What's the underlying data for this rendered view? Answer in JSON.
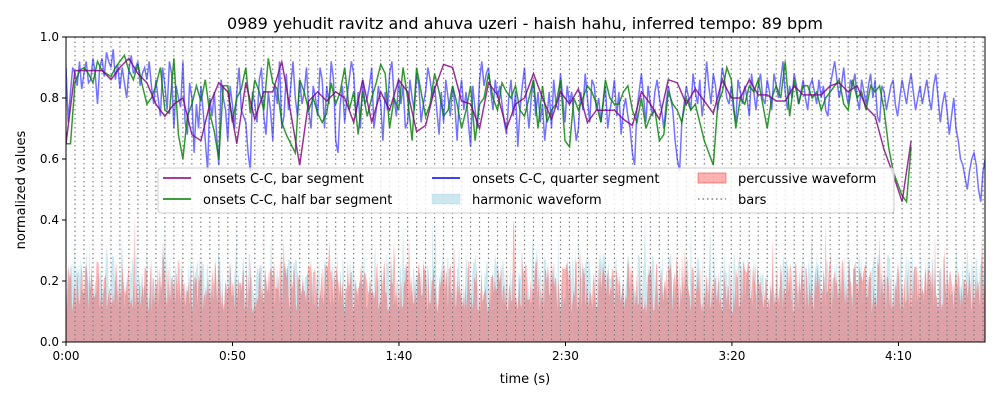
{
  "chart_data": {
    "type": "line",
    "title": "0989 yehudit ravitz and ahuva uzeri - haish hahu, inferred tempo: 89 bpm",
    "xlabel": "time (s)",
    "ylabel": "normalized values",
    "xlim": [
      0,
      276
    ],
    "ylim": [
      0,
      1
    ],
    "x_ticks": [
      {
        "value": 0,
        "label": "0:00"
      },
      {
        "value": 50,
        "label": "0:50"
      },
      {
        "value": 100,
        "label": "1:40"
      },
      {
        "value": 150,
        "label": "2:30"
      },
      {
        "value": 200,
        "label": "3:20"
      },
      {
        "value": 250,
        "label": "4:10"
      }
    ],
    "y_ticks": [
      {
        "value": 0.0,
        "label": "0.0"
      },
      {
        "value": 0.2,
        "label": "0.2"
      },
      {
        "value": 0.4,
        "label": "0.4"
      },
      {
        "value": 0.6,
        "label": "0.6"
      },
      {
        "value": 0.8,
        "label": "0.8"
      },
      {
        "value": 1.0,
        "label": "1.0"
      }
    ],
    "bar_interval": 2.7,
    "duration": 276,
    "legend": {
      "placement": "center",
      "entries": [
        {
          "label": "onsets C-C, bar segment",
          "kind": "line",
          "color": "#800080"
        },
        {
          "label": "onsets C-C, half bar segment",
          "kind": "line",
          "color": "#008000"
        },
        {
          "label": "onsets C-C, quarter segment",
          "kind": "line",
          "color": "#0000ff"
        },
        {
          "label": "harmonic waveform",
          "kind": "patch",
          "color": "#add8e6"
        },
        {
          "label": "percussive waveform",
          "kind": "patch",
          "color": "#ff0000"
        },
        {
          "label": "bars",
          "kind": "dotted",
          "color": "#808080"
        }
      ]
    },
    "series": [
      {
        "name": "onsets C-C, bar segment",
        "color": "#800080",
        "step": 2.7,
        "values": [
          0.65,
          0.89,
          0.89,
          0.89,
          0.89,
          0.86,
          0.9,
          0.93,
          0.88,
          0.85,
          0.78,
          0.74,
          0.78,
          0.8,
          0.68,
          0.66,
          0.78,
          0.85,
          0.82,
          0.65,
          0.85,
          0.73,
          0.82,
          0.82,
          0.92,
          0.75,
          0.58,
          0.79,
          0.82,
          0.79,
          0.82,
          0.8,
          0.72,
          0.86,
          0.72,
          0.82,
          0.76,
          0.86,
          0.82,
          0.69,
          0.71,
          0.83,
          0.91,
          0.9,
          0.79,
          0.78,
          0.7,
          0.85,
          0.81,
          0.7,
          0.78,
          0.8,
          0.88,
          0.8,
          0.73,
          0.82,
          0.78,
          0.83,
          0.72,
          0.76,
          0.76,
          0.76,
          0.73,
          0.71,
          0.82,
          0.78,
          0.73,
          0.86,
          0.85,
          0.78,
          0.83,
          0.79,
          0.75,
          0.86,
          0.8,
          0.8,
          0.86,
          0.81,
          0.81,
          0.79,
          0.79,
          0.84,
          0.81,
          0.81,
          0.81,
          0.84,
          0.85,
          0.82,
          0.84,
          0.77,
          0.74,
          0.63,
          0.55,
          0.46,
          0.66
        ]
      },
      {
        "name": "onsets C-C, half bar segment",
        "color": "#008000",
        "step": 1.35,
        "values": [
          0.65,
          0.65,
          0.85,
          0.89,
          0.9,
          0.88,
          0.85,
          0.92,
          0.89,
          0.88,
          0.87,
          0.9,
          0.92,
          0.94,
          0.89,
          0.86,
          0.91,
          0.84,
          0.78,
          0.8,
          0.84,
          0.9,
          0.76,
          0.75,
          0.93,
          0.68,
          0.6,
          0.74,
          0.78,
          0.84,
          0.79,
          0.86,
          0.75,
          0.69,
          0.6,
          0.84,
          0.84,
          0.72,
          0.8,
          0.83,
          0.9,
          0.75,
          0.86,
          0.82,
          0.76,
          0.93,
          0.85,
          0.83,
          0.72,
          0.68,
          0.65,
          0.62,
          0.86,
          0.82,
          0.76,
          0.8,
          0.75,
          0.72,
          0.75,
          0.85,
          0.78,
          0.82,
          0.9,
          0.76,
          0.82,
          0.68,
          0.82,
          0.74,
          0.8,
          0.85,
          0.91,
          0.88,
          0.7,
          0.8,
          0.76,
          0.9,
          0.8,
          0.66,
          0.9,
          0.82,
          0.74,
          0.78,
          0.88,
          0.82,
          0.74,
          0.76,
          0.84,
          0.78,
          0.7,
          0.76,
          0.84,
          0.66,
          0.78,
          0.8,
          0.88,
          0.8,
          0.76,
          0.85,
          0.82,
          0.8,
          0.84,
          0.76,
          0.74,
          0.8,
          0.86,
          0.7,
          0.84,
          0.72,
          0.76,
          0.78,
          0.86,
          0.66,
          0.64,
          0.8,
          0.76,
          0.8,
          0.84,
          0.82,
          0.78,
          0.72,
          0.86,
          0.8,
          0.78,
          0.78,
          0.82,
          0.84,
          0.76,
          0.72,
          0.8,
          0.7,
          0.74,
          0.76,
          0.66,
          0.68,
          0.82,
          0.78,
          0.76,
          0.72,
          0.8,
          0.76,
          0.78,
          0.72,
          0.66,
          0.62,
          0.58,
          0.78,
          0.82,
          0.9,
          0.86,
          0.7,
          0.8,
          0.78,
          0.84,
          0.82,
          0.86,
          0.78,
          0.7,
          0.8,
          0.84,
          0.8,
          0.92,
          0.74,
          0.86,
          0.78,
          0.84,
          0.84,
          0.8,
          0.82,
          0.76,
          0.8,
          0.82,
          0.84,
          0.86,
          0.78,
          0.76,
          0.86,
          0.8,
          0.82,
          0.76,
          0.84,
          0.82,
          0.84,
          0.76,
          0.64,
          0.56,
          0.52,
          0.48,
          0.46,
          0.64
        ]
      },
      {
        "name": "onsets C-C, quarter segment",
        "color": "#0000ff",
        "step": 0.675,
        "values": [
          0.9,
          0.72,
          0.82,
          0.9,
          0.88,
          0.84,
          0.92,
          0.83,
          0.88,
          0.92,
          0.85,
          0.86,
          0.93,
          0.88,
          0.78,
          0.9,
          0.93,
          0.87,
          0.95,
          0.92,
          0.9,
          0.96,
          0.86,
          0.91,
          0.83,
          0.9,
          0.85,
          0.8,
          0.89,
          0.94,
          0.88,
          0.9,
          0.92,
          0.84,
          0.88,
          0.9,
          0.86,
          0.92,
          0.84,
          0.78,
          0.86,
          0.8,
          0.74,
          0.9,
          0.84,
          0.76,
          0.92,
          0.88,
          0.7,
          0.84,
          0.8,
          0.77,
          0.92,
          0.72,
          0.68,
          0.85,
          0.8,
          0.62,
          0.78,
          0.7,
          0.84,
          0.76,
          0.66,
          0.56,
          0.8,
          0.74,
          0.82,
          0.68,
          0.58,
          0.86,
          0.8,
          0.76,
          0.66,
          0.84,
          0.78,
          0.7,
          0.82,
          0.9,
          0.76,
          0.74,
          0.72,
          0.62,
          0.56,
          0.82,
          0.78,
          0.72,
          0.86,
          0.9,
          0.74,
          0.68,
          0.82,
          0.76,
          0.66,
          0.84,
          0.78,
          0.92,
          0.7,
          0.74,
          0.88,
          0.76,
          0.84,
          0.92,
          0.8,
          0.74,
          0.86,
          0.78,
          0.82,
          0.9,
          0.76,
          0.7,
          0.84,
          0.8,
          0.74,
          0.9,
          0.86,
          0.7,
          0.84,
          0.78,
          0.92,
          0.86,
          0.66,
          0.62,
          0.78,
          0.84,
          0.72,
          0.8,
          0.86,
          0.92,
          0.88,
          0.74,
          0.82,
          0.7,
          0.86,
          0.78,
          0.8,
          0.84,
          0.9,
          0.7,
          0.76,
          0.84,
          0.78,
          0.66,
          0.82,
          0.76,
          0.88,
          0.92,
          0.8,
          0.74,
          0.86,
          0.78,
          0.84,
          0.7,
          0.72,
          0.86,
          0.8,
          0.76,
          0.88,
          0.84,
          0.72,
          0.78,
          0.82,
          0.9,
          0.86,
          0.8,
          0.84,
          0.76,
          0.68,
          0.82,
          0.72,
          0.86,
          0.8,
          0.74,
          0.84,
          0.78,
          0.66,
          0.8,
          0.86,
          0.76,
          0.82,
          0.72,
          0.64,
          0.84,
          0.76,
          0.7,
          0.86,
          0.92,
          0.84,
          0.88,
          0.9,
          0.82,
          0.76,
          0.86,
          0.8,
          0.84,
          0.78,
          0.72,
          0.68,
          0.8,
          0.86,
          0.74,
          0.82,
          0.64,
          0.76,
          0.84,
          0.9,
          0.78,
          0.7,
          0.8,
          0.86,
          0.74,
          0.82,
          0.72,
          0.78,
          0.66,
          0.74,
          0.82,
          0.7,
          0.86,
          0.78,
          0.76,
          0.88,
          0.8,
          0.72,
          0.84,
          0.78,
          0.82,
          0.74,
          0.66,
          0.7,
          0.82,
          0.76,
          0.88,
          0.8,
          0.72,
          0.86,
          0.84,
          0.76,
          0.8,
          0.72,
          0.78,
          0.84,
          0.7,
          0.76,
          0.8,
          0.86,
          0.74,
          0.82,
          0.68,
          0.76,
          0.8,
          0.74,
          0.7,
          0.62,
          0.58,
          0.76,
          0.82,
          0.88,
          0.8,
          0.72,
          0.84,
          0.78,
          0.74,
          0.82,
          0.86,
          0.8,
          0.76,
          0.7,
          0.78,
          0.84,
          0.8,
          0.76,
          0.66,
          0.6,
          0.56,
          0.72,
          0.78,
          0.84,
          0.8,
          0.76,
          0.88,
          0.82,
          0.78,
          0.86,
          0.74,
          0.8,
          0.92,
          0.84,
          0.78,
          0.88,
          0.84,
          0.76,
          0.82,
          0.9,
          0.86,
          0.8,
          0.78,
          0.84,
          0.76,
          0.72,
          0.86,
          0.82,
          0.78,
          0.84,
          0.8,
          0.74,
          0.88,
          0.82,
          0.76,
          0.84,
          0.88,
          0.8,
          0.78,
          0.86,
          0.82,
          0.76,
          0.88,
          0.84,
          0.8,
          0.86,
          0.92,
          0.82,
          0.76,
          0.84,
          0.8,
          0.88,
          0.84,
          0.78,
          0.82,
          0.86,
          0.8,
          0.76,
          0.84,
          0.86,
          0.82,
          0.78,
          0.86,
          0.8,
          0.84,
          0.76,
          0.74,
          0.84,
          0.88,
          0.92,
          0.86,
          0.8,
          0.84,
          0.9,
          0.82,
          0.78,
          0.86,
          0.84,
          0.88,
          0.8,
          0.76,
          0.86,
          0.82,
          0.78,
          0.84,
          0.88,
          0.8,
          0.86,
          0.74,
          0.72,
          0.84,
          0.82,
          0.76,
          0.8,
          0.84,
          0.86,
          0.78,
          0.74,
          0.8,
          0.86,
          0.82,
          0.78,
          0.84,
          0.88,
          0.82,
          0.76,
          0.8,
          0.84,
          0.78,
          0.82,
          0.86,
          0.8,
          0.76,
          0.84,
          0.88,
          0.8,
          0.72,
          0.78,
          0.82,
          0.76,
          0.68,
          0.74,
          0.8,
          0.7,
          0.66,
          0.6,
          0.58,
          0.54,
          0.5,
          0.56,
          0.6,
          0.62,
          0.58,
          0.5,
          0.46,
          0.56,
          0.6,
          0.7,
          0.86,
          0.9,
          0.86
        ]
      }
    ]
  }
}
